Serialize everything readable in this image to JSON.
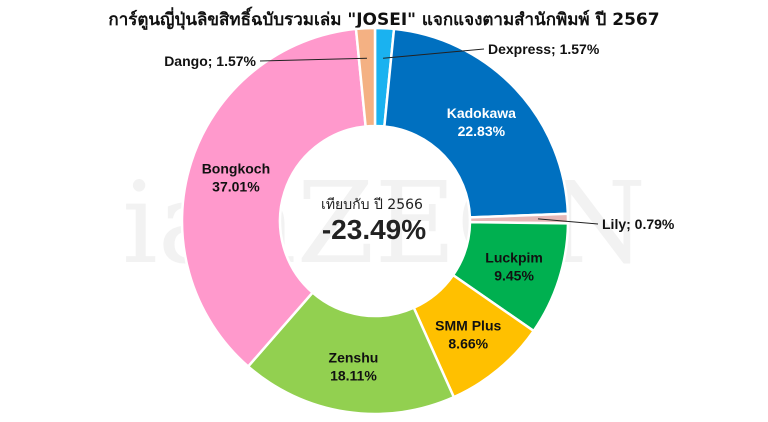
{
  "chart_data": {
    "type": "pie",
    "title": "การ์ตูนญี่ปุ่นลิขสิทธิ์ฉบับรวมเล่ม \"JOSEI\" แจกแจงตามสำนักพิมพ์ ปี 2567",
    "donut": true,
    "start": "top",
    "direction": "clockwise",
    "slices": [
      {
        "name": "Dexpress",
        "value": 1.57,
        "label": "1.57%",
        "color": "#1AB2F0",
        "label_style": "callout-right"
      },
      {
        "name": "Kadokawa",
        "value": 22.83,
        "label": "22.83%",
        "color": "#0070C0",
        "label_style": "inside-white"
      },
      {
        "name": "Lily",
        "value": 0.79,
        "label": "0.79%",
        "color": "#E6B8B7",
        "label_style": "callout-right"
      },
      {
        "name": "Luckpim",
        "value": 9.45,
        "label": "9.45%",
        "color": "#00B050",
        "label_style": "inside-dark"
      },
      {
        "name": "SMM Plus",
        "value": 8.66,
        "label": "8.66%",
        "color": "#FFC000",
        "label_style": "inside-dark"
      },
      {
        "name": "Zenshu",
        "value": 18.11,
        "label": "18.11%",
        "color": "#92D050",
        "label_style": "inside-dark"
      },
      {
        "name": "Bongkoch",
        "value": 37.01,
        "label": "37.01%",
        "color": "#FF99CC",
        "label_style": "inside-dark"
      },
      {
        "name": "Dango",
        "value": 1.57,
        "label": "1.57%",
        "color": "#F4B183",
        "label_style": "callout-left"
      }
    ],
    "center_caption": "เทียบกับ ปี 2566",
    "center_value": "-23.49%",
    "watermark": "ianZEON"
  }
}
